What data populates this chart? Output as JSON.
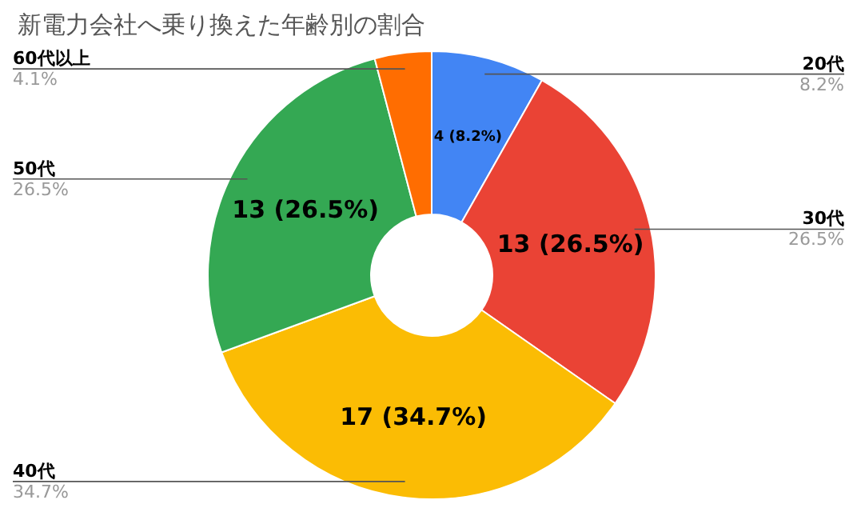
{
  "chart_data": {
    "type": "donut",
    "title": "新電力会社へ乗り換えた年齢別の割合",
    "categories": [
      "20代",
      "30代",
      "40代",
      "50代",
      "60代以上"
    ],
    "values": [
      8.2,
      26.5,
      34.7,
      26.5,
      4.1
    ],
    "colors": [
      "#4285f4",
      "#ea4335",
      "#fbbc04",
      "#34a853",
      "#ff6d01"
    ],
    "value_labels": [
      "8.2%",
      "26.5%",
      "34.7%",
      "26.5%",
      "4.1%"
    ],
    "annotations": [
      "4 (8.2%)",
      "13 (26.5%)",
      "17 (34.7%)",
      "13 (26.5%)"
    ],
    "legend": false
  }
}
